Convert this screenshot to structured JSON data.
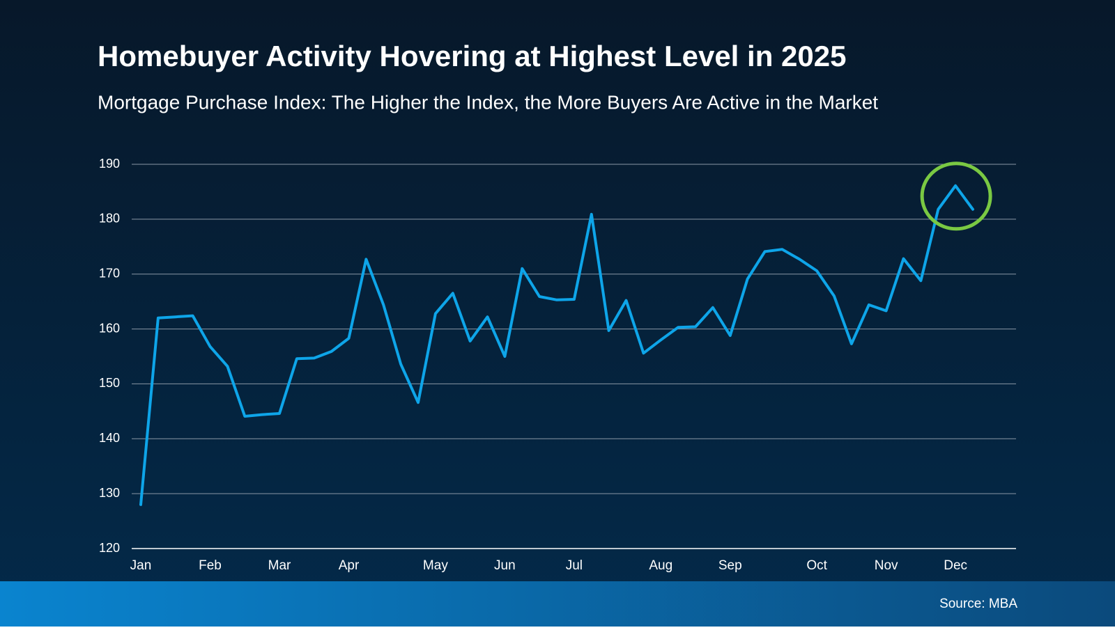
{
  "chart_data": {
    "type": "line",
    "title": "Homebuyer Activity Hovering at Highest Level in 2025",
    "subtitle": "Mortgage Purchase Index: The Higher the Index, the More Buyers Are Active in the Market",
    "source": "Source: MBA",
    "categories": [
      "Jan",
      null,
      null,
      null,
      "Feb",
      null,
      null,
      null,
      "Mar",
      null,
      null,
      null,
      "Apr",
      null,
      null,
      null,
      null,
      "May",
      null,
      null,
      null,
      "Jun",
      null,
      null,
      null,
      "Jul",
      null,
      null,
      null,
      null,
      "Aug",
      null,
      null,
      null,
      "Sep",
      null,
      null,
      null,
      null,
      "Oct",
      null,
      null,
      null,
      "Nov",
      null,
      null,
      null,
      "Dec",
      null
    ],
    "values": [
      128,
      162,
      162.2,
      162.4,
      156.8,
      153.2,
      144.1,
      144.4,
      144.6,
      154.6,
      154.7,
      155.9,
      158.3,
      172.7,
      164.4,
      153.6,
      146.6,
      162.8,
      166.5,
      157.8,
      162.2,
      155.0,
      171.0,
      165.9,
      165.3,
      165.4,
      180.9,
      159.7,
      165.2,
      155.6,
      158.0,
      160.3,
      160.4,
      163.9,
      158.8,
      169.1,
      174.1,
      174.5,
      172.7,
      170.6,
      166.0,
      157.3,
      164.4,
      163.3,
      172.8,
      168.8,
      181.8,
      186.1,
      181.8
    ],
    "color": "#0ea5e9",
    "ylim": [
      120,
      190
    ],
    "yticks": [
      120,
      130,
      140,
      150,
      160,
      170,
      180,
      190
    ],
    "grid": true
  }
}
